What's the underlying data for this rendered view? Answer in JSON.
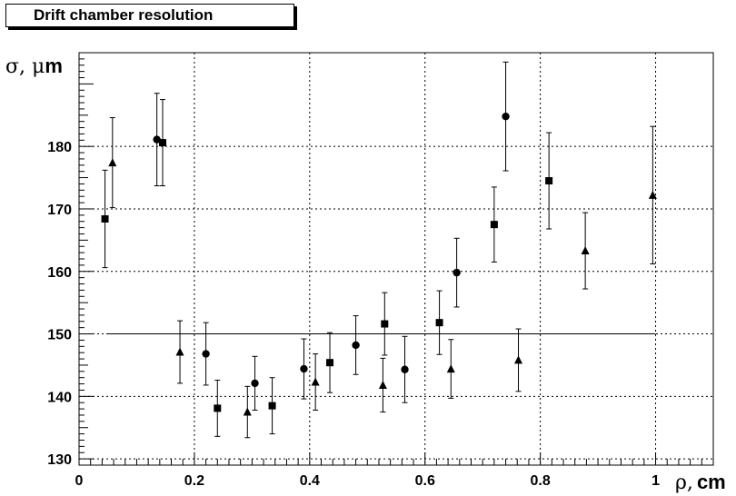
{
  "chart_data": {
    "type": "scatter",
    "title": "Drift chamber resolution",
    "xlabel_sym": "ρ,",
    "xlabel_unit": "cm",
    "ylabel_sym": "σ, μ",
    "ylabel_unit": "m",
    "xlim": [
      0,
      1.1
    ],
    "ylim": [
      129,
      195
    ],
    "xticks": [
      0,
      0.2,
      0.4,
      0.6,
      0.8,
      1
    ],
    "xtick_labels": [
      "0",
      "0.2",
      "0.4",
      "0.6",
      "0.8",
      "1"
    ],
    "yticks": [
      130,
      140,
      150,
      160,
      170,
      180
    ],
    "ytick_labels": [
      "130",
      "140",
      "150",
      "160",
      "170",
      "180"
    ],
    "grid": true,
    "reference_line": {
      "y": 150,
      "x": [
        0.05,
        1.0
      ]
    },
    "series": [
      {
        "marker": "square",
        "points": [
          {
            "x": 0.045,
            "y": 168.4,
            "err": 7.8
          },
          {
            "x": 0.145,
            "y": 180.6,
            "err": 6.9
          },
          {
            "x": 0.24,
            "y": 138.1,
            "err": 4.5
          },
          {
            "x": 0.335,
            "y": 138.5,
            "err": 4.5
          },
          {
            "x": 0.435,
            "y": 145.4,
            "err": 4.8
          },
          {
            "x": 0.53,
            "y": 151.6,
            "err": 5.0
          },
          {
            "x": 0.625,
            "y": 151.8,
            "err": 5.1
          },
          {
            "x": 0.72,
            "y": 167.5,
            "err": 6.0
          },
          {
            "x": 0.815,
            "y": 174.5,
            "err": 7.7
          }
        ]
      },
      {
        "marker": "circle",
        "points": [
          {
            "x": 0.135,
            "y": 181.1,
            "err": 7.4
          },
          {
            "x": 0.22,
            "y": 146.8,
            "err": 5.0
          },
          {
            "x": 0.305,
            "y": 142.1,
            "err": 4.3
          },
          {
            "x": 0.39,
            "y": 144.4,
            "err": 4.8
          },
          {
            "x": 0.48,
            "y": 148.2,
            "err": 4.7
          },
          {
            "x": 0.565,
            "y": 144.3,
            "err": 5.3
          },
          {
            "x": 0.655,
            "y": 159.8,
            "err": 5.5
          },
          {
            "x": 0.74,
            "y": 184.8,
            "err": 8.7
          }
        ]
      },
      {
        "marker": "triangle",
        "points": [
          {
            "x": 0.058,
            "y": 177.4,
            "err": 7.2
          },
          {
            "x": 0.175,
            "y": 147.1,
            "err": 5.0
          },
          {
            "x": 0.292,
            "y": 137.5,
            "err": 4.1
          },
          {
            "x": 0.41,
            "y": 142.3,
            "err": 4.5
          },
          {
            "x": 0.527,
            "y": 141.8,
            "err": 4.3
          },
          {
            "x": 0.645,
            "y": 144.4,
            "err": 4.7
          },
          {
            "x": 0.762,
            "y": 145.8,
            "err": 5.0
          },
          {
            "x": 0.878,
            "y": 163.3,
            "err": 6.1
          },
          {
            "x": 0.995,
            "y": 172.2,
            "err": 11.0
          }
        ]
      }
    ]
  }
}
